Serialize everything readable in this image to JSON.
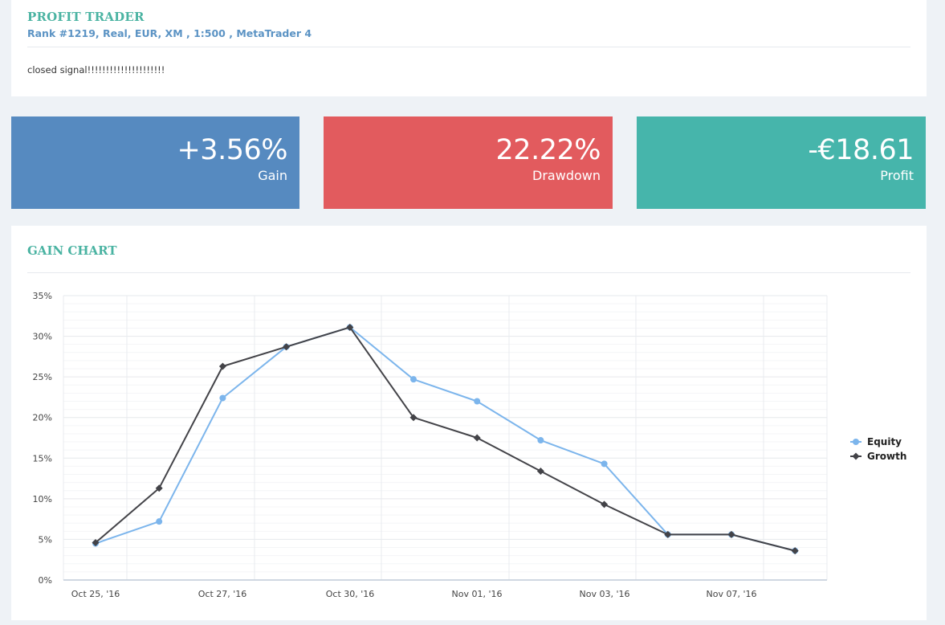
{
  "header": {
    "title": "PROFIT TRADER",
    "subtitle": "Rank #1219, Real, EUR, XM , 1:500 , MetaTrader 4",
    "message": "closed signal!!!!!!!!!!!!!!!!!!!!!"
  },
  "stats": {
    "gain": {
      "value": "+3.56%",
      "label": "Gain"
    },
    "drawdown": {
      "value": "22.22%",
      "label": "Drawdown"
    },
    "profit": {
      "value": "-€18.61",
      "label": "Profit"
    }
  },
  "colors": {
    "equity": "#7cb5ec",
    "growth": "#434348"
  },
  "chart_data": {
    "type": "line",
    "title": "GAIN CHART",
    "x_tick_labels": [
      "Oct 25, '16",
      "Oct 27, '16",
      "Oct 30, '16",
      "Nov 01, '16",
      "Nov 03, '16",
      "Nov 07, '16"
    ],
    "y_tick_labels": [
      "0%",
      "5%",
      "10%",
      "15%",
      "20%",
      "25%",
      "30%",
      "35%"
    ],
    "ylim": [
      0,
      35
    ],
    "grid": true,
    "legend_position": "right",
    "series": [
      {
        "name": "Equity",
        "values": [
          4.5,
          7.2,
          22.4,
          28.7,
          31.1,
          24.7,
          22.0,
          17.2,
          14.3,
          5.6,
          5.6,
          3.6
        ]
      },
      {
        "name": "Growth",
        "values": [
          4.6,
          11.3,
          26.3,
          28.7,
          31.1,
          20.0,
          17.5,
          13.4,
          9.3,
          5.6,
          5.6,
          3.6
        ]
      }
    ]
  }
}
